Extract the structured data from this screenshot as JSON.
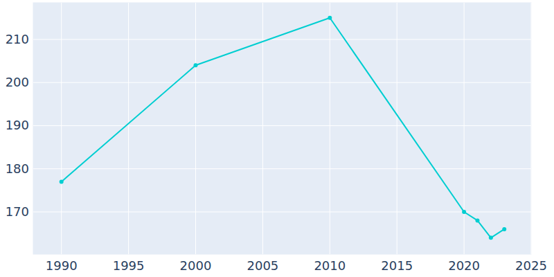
{
  "chart_data": {
    "type": "line",
    "x": [
      1990,
      2000,
      2010,
      2020,
      2021,
      2022,
      2023
    ],
    "values": [
      177,
      204,
      215,
      170,
      168,
      164,
      166
    ],
    "color": "#00ced1",
    "marker": "circle",
    "xlim": [
      1987.9,
      2025
    ],
    "xticks": [
      1990,
      1995,
      2000,
      2005,
      2010,
      2015,
      2020,
      2025
    ],
    "ylim": [
      160.2,
      218.5
    ],
    "yticks": [
      170,
      180,
      190,
      200,
      210
    ],
    "grid": true
  }
}
